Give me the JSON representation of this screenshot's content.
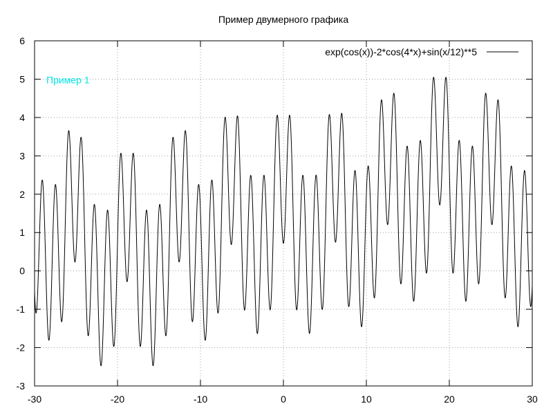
{
  "chart_data": {
    "type": "line",
    "title": "Пример двумерного графика",
    "xlabel": "",
    "ylabel": "",
    "xlim": [
      -30,
      30
    ],
    "ylim": [
      -3,
      6
    ],
    "x_ticks": [
      -30,
      -20,
      -10,
      0,
      10,
      20,
      30
    ],
    "y_ticks": [
      -3,
      -2,
      -1,
      0,
      1,
      2,
      3,
      4,
      5,
      6
    ],
    "grid": true,
    "legend_position": "top-right",
    "series": [
      {
        "name": "exp(cos(x))-2*cos(4*x)+sin(x/12)**5",
        "function": "exp(cos(x))-2*cos(4*x)+sin(x/12)**5",
        "color": "#000000"
      }
    ],
    "annotations": [
      {
        "text": "Пример 1",
        "x": -28.5,
        "y": 5,
        "color": "#00e5e5"
      }
    ]
  }
}
